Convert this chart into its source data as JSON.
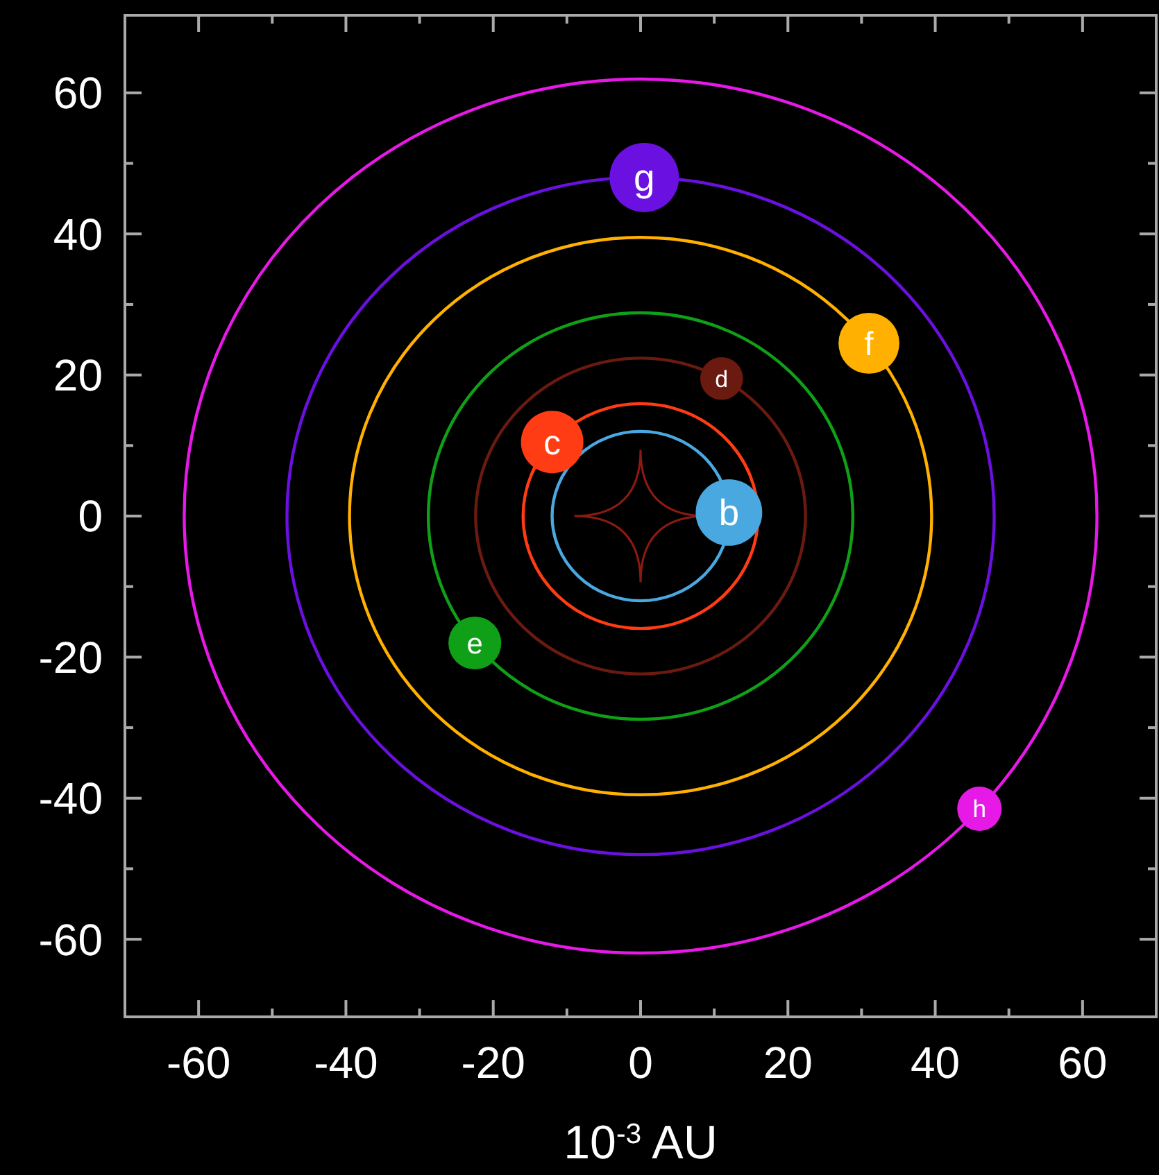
{
  "chart_data": {
    "type": "bubble",
    "xlabel": "10$^{-3}$ AU",
    "xlim": [
      -70,
      70
    ],
    "ylim": [
      -71,
      71
    ],
    "xticks": [
      -60,
      {
        "value": -50,
        "label": null
      },
      -40,
      {
        "value": -30,
        "label": null
      },
      -20,
      {
        "value": -10,
        "label": null
      },
      0,
      {
        "value": 10,
        "label": null
      },
      20,
      {
        "value": 30,
        "label": null
      },
      40,
      {
        "value": 50,
        "label": null
      },
      60
    ],
    "yticks": [
      -60,
      {
        "value": -50,
        "label": null
      },
      -40,
      {
        "value": -30,
        "label": null
      },
      -20,
      {
        "value": -10,
        "label": null
      },
      0,
      {
        "value": 10,
        "label": null
      },
      20,
      {
        "value": 30,
        "label": null
      },
      40,
      {
        "value": 50,
        "label": null
      },
      60
    ],
    "grid": false,
    "legend": false,
    "marker": "circle",
    "series": [
      {
        "name": "b",
        "color": "#4aa8e0",
        "x": [
          12
        ],
        "values": [
          0.5
        ],
        "sizes": [
          0.92
        ]
      },
      {
        "name": "c",
        "color": "#ff3c14",
        "x": [
          -12
        ],
        "values": [
          10.5
        ],
        "sizes": [
          0.81
        ]
      },
      {
        "name": "d",
        "color": "#6b1a10",
        "x": [
          11
        ],
        "values": [
          19.5
        ],
        "sizes": [
          0.38
        ]
      },
      {
        "name": "e",
        "color": "#10a018",
        "x": [
          -22.5
        ],
        "values": [
          -18
        ],
        "sizes": [
          0.58
        ]
      },
      {
        "name": "f",
        "color": "#ffb000",
        "x": [
          31
        ],
        "values": [
          24.5
        ],
        "sizes": [
          0.77
        ]
      },
      {
        "name": "g",
        "color": "#6a10e0",
        "x": [
          0.5
        ],
        "values": [
          48
        ],
        "sizes": [
          1
        ]
      },
      {
        "name": "h",
        "color": "#e619e6",
        "x": [
          46
        ],
        "values": [
          -41.5
        ],
        "sizes": [
          0.41
        ]
      }
    ]
  }
}
